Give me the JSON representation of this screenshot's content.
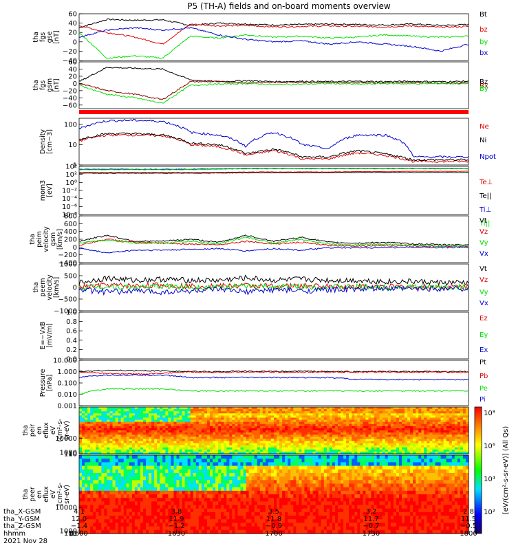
{
  "title": "P5 (TH-A) fields and on-board moments overview",
  "colors": {
    "black": "#000000",
    "red": "#e00000",
    "green": "#00e000",
    "blue": "#0000d0",
    "darkred": "#8b0000"
  },
  "chart_data": [
    {
      "type": "line",
      "ylabel": [
        "tha",
        "fgs",
        "gse",
        "[nT]"
      ],
      "ylim": [
        -40,
        60
      ],
      "yticks": [
        "60",
        "40",
        "20",
        "0",
        "−20",
        "−40"
      ],
      "tickvals": [
        60,
        40,
        20,
        0,
        -20,
        -40
      ],
      "series": [
        {
          "name": "Bt",
          "color": "#000000",
          "values": [
            30,
            48,
            46,
            47,
            35,
            40,
            38,
            36,
            37,
            38,
            37,
            36,
            38,
            35,
            37
          ]
        },
        {
          "name": "bz",
          "color": "#e00000",
          "values": [
            35,
            20,
            10,
            -5,
            38,
            34,
            35,
            32,
            33,
            34,
            33,
            32,
            34,
            31,
            33
          ]
        },
        {
          "name": "by",
          "color": "#00e000",
          "values": [
            20,
            -35,
            -30,
            -35,
            12,
            8,
            15,
            10,
            12,
            8,
            10,
            15,
            12,
            10,
            12
          ]
        },
        {
          "name": "bx",
          "color": "#0000d0",
          "values": [
            10,
            25,
            30,
            25,
            30,
            15,
            5,
            0,
            2,
            -5,
            0,
            -5,
            -10,
            -20,
            -5
          ]
        }
      ]
    },
    {
      "type": "line",
      "ylabel": [
        "tha",
        "fgs",
        "gsm",
        "[nT]"
      ],
      "ylim": [
        -70,
        60
      ],
      "yticks": [
        "60",
        "40",
        "20",
        "0",
        "−20",
        "−40",
        "−60"
      ],
      "tickvals": [
        60,
        40,
        20,
        0,
        -20,
        -40,
        -60
      ],
      "series": [
        {
          "name": "Bz",
          "color": "#000000",
          "values": [
            5,
            45,
            42,
            40,
            10,
            5,
            8,
            5,
            6,
            5,
            6,
            5,
            6,
            5,
            6
          ]
        },
        {
          "name": "Bx",
          "color": "#8b0000",
          "values": [
            0,
            -20,
            -30,
            -45,
            5,
            5,
            2,
            3,
            4,
            2,
            3,
            2,
            3,
            1,
            2
          ]
        },
        {
          "name": "By",
          "color": "#00e000",
          "values": [
            -5,
            -30,
            -40,
            -55,
            -5,
            -2,
            0,
            -3,
            -2,
            0,
            -2,
            0,
            -1,
            0,
            -1
          ]
        }
      ]
    },
    {
      "type": "line",
      "log": true,
      "ylabel": [
        "Density",
        "[cm−3]"
      ],
      "ylim": [
        1,
        200
      ],
      "yticks": [
        "100",
        "10",
        "1"
      ],
      "tickvals": [
        100,
        10,
        1
      ],
      "series": [
        {
          "name": "Ne",
          "color": "#e00000",
          "values": [
            15,
            30,
            30,
            28,
            10,
            8,
            3,
            5,
            2,
            2,
            4,
            3,
            1.5,
            1.5,
            1.5
          ]
        },
        {
          "name": "Ni",
          "color": "#000000",
          "values": [
            18,
            35,
            35,
            30,
            12,
            10,
            3.5,
            6,
            2.5,
            2.5,
            5,
            3.5,
            1.8,
            1.8,
            1.8
          ]
        },
        {
          "name": "Npot",
          "color": "#0000d0",
          "values": [
            60,
            150,
            160,
            140,
            40,
            30,
            8,
            40,
            10,
            6,
            30,
            30,
            2.5,
            2.5,
            2.5
          ]
        }
      ]
    },
    {
      "type": "line",
      "log": true,
      "ylabel": [
        "mom3",
        "[eV]"
      ],
      "ylim": [
        1e-08,
        10000
      ],
      "yticks": [
        "10⁴",
        "10²",
        "10⁰",
        "10⁻²",
        "10⁻⁴",
        "10⁻⁶",
        "10⁻⁸"
      ],
      "tickvals": [
        10000,
        100,
        1,
        0.01,
        0.0001,
        1e-06,
        1e-08
      ],
      "series": [
        {
          "name": "Te⊥",
          "color": "#e00000",
          "values": [
            300,
            300,
            300,
            300,
            300,
            300,
            400,
            400,
            400,
            400,
            500,
            500,
            600,
            600,
            600
          ]
        },
        {
          "name": "Te||",
          "color": "#000000",
          "values": [
            200,
            200,
            200,
            200,
            200,
            220,
            250,
            260,
            260,
            260,
            300,
            300,
            300,
            300,
            300
          ]
        },
        {
          "name": "Ti⊥",
          "color": "#0000d0",
          "values": [
            2000,
            2000,
            2000,
            2000,
            2000,
            2500,
            3000,
            3000,
            3000,
            3000,
            3000,
            3000,
            3000,
            3000,
            3000
          ]
        },
        {
          "name": "Ti||",
          "color": "#00e000",
          "values": [
            1500,
            1500,
            1500,
            1500,
            1500,
            2000,
            2500,
            2500,
            2500,
            2500,
            2500,
            2500,
            2500,
            2500,
            2500
          ]
        }
      ]
    },
    {
      "type": "line",
      "ylabel": [
        "tha",
        "peim",
        "velocity",
        "gsm",
        "[km/s]"
      ],
      "ylim": [
        -400,
        800
      ],
      "yticks": [
        "800",
        "600",
        "400",
        "200",
        "0",
        "−200",
        "−400"
      ],
      "tickvals": [
        800,
        600,
        400,
        200,
        0,
        -200,
        -400
      ],
      "series": [
        {
          "name": "Vt",
          "color": "#000000",
          "values": [
            150,
            300,
            150,
            150,
            200,
            120,
            300,
            150,
            250,
            120,
            100,
            120,
            80,
            60,
            60
          ]
        },
        {
          "name": "Vz",
          "color": "#e00000",
          "values": [
            50,
            200,
            120,
            100,
            80,
            60,
            150,
            80,
            120,
            40,
            30,
            40,
            20,
            20,
            20
          ]
        },
        {
          "name": "Vy",
          "color": "#00e000",
          "values": [
            100,
            180,
            100,
            100,
            150,
            80,
            250,
            100,
            200,
            80,
            60,
            80,
            40,
            30,
            30
          ]
        },
        {
          "name": "Vx",
          "color": "#0000d0",
          "values": [
            -30,
            -150,
            -80,
            -80,
            -60,
            -40,
            -100,
            -40,
            -80,
            -20,
            -20,
            -10,
            -10,
            -10,
            -10
          ]
        }
      ]
    },
    {
      "type": "line",
      "ylabel": [
        "tha",
        "peem",
        "velocity",
        "[km/s]"
      ],
      "ylim": [
        -1000,
        1000
      ],
      "yticks": [
        "1000",
        "500",
        "0",
        "−500",
        "−1000"
      ],
      "tickvals": [
        1000,
        500,
        0,
        -500,
        -1000
      ],
      "series": [
        {
          "name": "Vt",
          "color": "#000000",
          "values": [
            200,
            400,
            300,
            350,
            300,
            300,
            400,
            300,
            350,
            300,
            300,
            250,
            250,
            200,
            200
          ]
        },
        {
          "name": "Vz",
          "color": "#e00000",
          "values": [
            0,
            100,
            50,
            100,
            50,
            50,
            80,
            50,
            60,
            40,
            30,
            30,
            20,
            20,
            20
          ]
        },
        {
          "name": "Vy",
          "color": "#00e000",
          "values": [
            0,
            50,
            0,
            50,
            20,
            20,
            40,
            20,
            30,
            20,
            20,
            10,
            10,
            10,
            10
          ]
        },
        {
          "name": "Vx",
          "color": "#0000d0",
          "values": [
            -100,
            -200,
            -150,
            -200,
            -150,
            -100,
            -200,
            -100,
            -150,
            -100,
            -80,
            -60,
            -60,
            -50,
            -50
          ]
        }
      ]
    },
    {
      "type": "line",
      "ylabel": [
        "E=−VxB",
        "[mV/m]"
      ],
      "ylim": [
        0,
        1
      ],
      "yticks": [
        "1.0",
        "0.8",
        "0.6",
        "0.4",
        "0.2",
        "0.0"
      ],
      "tickvals": [
        1.0,
        0.8,
        0.6,
        0.4,
        0.2,
        0.0
      ],
      "series": [
        {
          "name": "Ez",
          "color": "#e00000",
          "values": []
        },
        {
          "name": "Ey",
          "color": "#00e000",
          "values": []
        },
        {
          "name": "Ex",
          "color": "#0000d0",
          "values": []
        }
      ]
    },
    {
      "type": "line",
      "log": true,
      "ylabel": [
        "Pressure",
        "[nPa]"
      ],
      "ylim": [
        0.001,
        10
      ],
      "yticks": [
        "10.000",
        "1.000",
        "0.100",
        "0.010",
        "0.001"
      ],
      "tickvals": [
        10,
        1,
        0.1,
        0.01,
        0.001
      ],
      "series": [
        {
          "name": "Pt",
          "color": "#000000",
          "values": [
            1.0,
            1.3,
            1.2,
            1.2,
            1.0,
            1.0,
            1.1,
            1.0,
            1.1,
            1.0,
            1.0,
            1.0,
            1.0,
            1.0,
            1.0
          ]
        },
        {
          "name": "Pb",
          "color": "#e00000",
          "values": [
            0.9,
            0.7,
            0.6,
            0.7,
            0.9,
            0.9,
            0.9,
            0.9,
            0.9,
            0.9,
            0.9,
            0.9,
            0.9,
            0.9,
            0.9
          ]
        },
        {
          "name": "Pe",
          "color": "#00e000",
          "values": [
            0.01,
            0.03,
            0.03,
            0.03,
            0.02,
            0.02,
            0.02,
            0.02,
            0.02,
            0.02,
            0.02,
            0.02,
            0.02,
            0.02,
            0.02
          ]
        },
        {
          "name": "Pi",
          "color": "#0000d0",
          "values": [
            0.3,
            0.5,
            0.5,
            0.5,
            0.3,
            0.3,
            0.3,
            0.3,
            0.3,
            0.3,
            0.2,
            0.2,
            0.2,
            0.2,
            0.2
          ]
        }
      ]
    },
    {
      "type": "heatmap",
      "ylabel": [
        "tha",
        "peir",
        "en",
        "eflux",
        "eV",
        "(cm²-s-",
        "sr-eV)"
      ],
      "ylim": [
        10,
        30000
      ],
      "yticks": [
        "10000",
        "1000",
        "100",
        "10"
      ],
      "tickvals": [
        10000,
        1000,
        100,
        10
      ],
      "colorbar_label": "[eV/(cm²-s-sr-eV)] (All Qs)",
      "colorbar_ticks": [
        "10⁸",
        "10⁶",
        "10⁴",
        "10²"
      ]
    },
    {
      "type": "heatmap",
      "ylabel": [
        "tha",
        "peer",
        "en",
        "eflux",
        "eV",
        "(cm²-s-",
        "sr-eV)"
      ],
      "ylim": [
        7,
        30000
      ],
      "yticks": [
        "10000",
        "1000",
        "100",
        "10"
      ],
      "tickvals": [
        10000,
        1000,
        100,
        10
      ],
      "colorbar_label": "[eV/(cm²-s-sr-eV)] (All Qs)",
      "colorbar_ticks": [
        "10⁸",
        "10⁶",
        "10⁴",
        "10²"
      ]
    }
  ],
  "x_axis": {
    "row_labels": [
      "tha_X-GSM",
      "tha_Y-GSM",
      "tha_Z-GSM",
      "hhmm",
      "2021 Nov 28"
    ],
    "columns": [
      [
        "4.1",
        "12.0",
        "−1.4",
        "1600"
      ],
      [
        "3.8",
        "11.9",
        "−1.2",
        "1630"
      ],
      [
        "3.5",
        "11.8",
        "−0.9",
        "1700"
      ],
      [
        "3.2",
        "11.7",
        "−0.7",
        "1730"
      ],
      [
        "2.8",
        "11.5",
        "−0.5",
        "1800"
      ]
    ]
  }
}
